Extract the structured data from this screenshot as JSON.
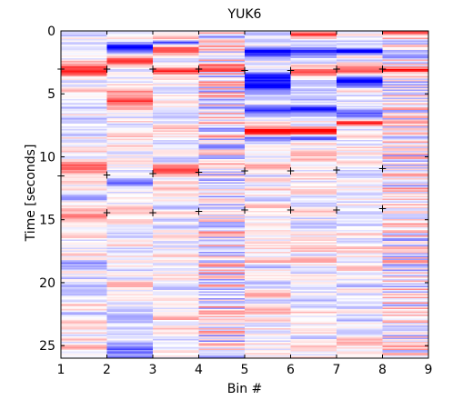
{
  "chart_data": {
    "type": "heatmap",
    "title": "YUK6",
    "xlabel": "Bin #",
    "ylabel": "Time [seconds]",
    "xlim": [
      1,
      9
    ],
    "ylim": [
      0,
      26
    ],
    "y_reversed": true,
    "x_ticks": [
      "1",
      "2",
      "3",
      "4",
      "5",
      "6",
      "7",
      "8",
      "9"
    ],
    "y_ticks": [
      "0",
      "5",
      "10",
      "15",
      "20",
      "25"
    ],
    "y_tick_values": [
      0,
      5,
      10,
      15,
      20,
      25
    ],
    "colormap": {
      "negative": "#0000ff",
      "zero": "#ffffff",
      "positive": "#ff0000"
    },
    "grid": false,
    "legend": "none",
    "markers": {
      "symbol": "+",
      "points": [
        {
          "x": 1,
          "y": 3.0
        },
        {
          "x": 2,
          "y": 3.0
        },
        {
          "x": 3,
          "y": 3.0
        },
        {
          "x": 4,
          "y": 3.0
        },
        {
          "x": 5,
          "y": 3.1
        },
        {
          "x": 6,
          "y": 3.1
        },
        {
          "x": 7,
          "y": 3.0
        },
        {
          "x": 8,
          "y": 3.0
        },
        {
          "x": 1,
          "y": 11.5
        },
        {
          "x": 2,
          "y": 11.4
        },
        {
          "x": 3,
          "y": 11.3
        },
        {
          "x": 4,
          "y": 11.2
        },
        {
          "x": 5,
          "y": 11.1
        },
        {
          "x": 6,
          "y": 11.1
        },
        {
          "x": 7,
          "y": 11.0
        },
        {
          "x": 8,
          "y": 10.9
        },
        {
          "x": 2,
          "y": 14.4
        },
        {
          "x": 3,
          "y": 14.4
        },
        {
          "x": 4,
          "y": 14.3
        },
        {
          "x": 5,
          "y": 14.2
        },
        {
          "x": 6,
          "y": 14.2
        },
        {
          "x": 7,
          "y": 14.2
        },
        {
          "x": 8,
          "y": 14.1
        }
      ]
    },
    "bands": [
      {
        "bin": 1,
        "intensity": 0.55,
        "seed": 11,
        "features": [
          {
            "y": 3.0,
            "w": 0.45,
            "v": 1.0
          },
          {
            "y": 11.0,
            "w": 0.5,
            "v": 0.6
          },
          {
            "y": 14.8,
            "w": 0.4,
            "v": 0.6
          },
          {
            "y": 18.5,
            "w": 0.4,
            "v": -0.4
          }
        ]
      },
      {
        "bin": 2,
        "intensity": 0.5,
        "seed": 23,
        "features": [
          {
            "y": 1.3,
            "w": 0.35,
            "v": -1.0
          },
          {
            "y": 2.3,
            "w": 0.3,
            "v": 0.9
          },
          {
            "y": 5.6,
            "w": 0.9,
            "v": 0.65
          },
          {
            "y": 12.2,
            "w": 0.5,
            "v": -0.4
          },
          {
            "y": 25.5,
            "w": 0.8,
            "v": -0.45
          }
        ]
      },
      {
        "bin": 3,
        "intensity": 0.5,
        "seed": 37,
        "features": [
          {
            "y": 0.6,
            "w": 0.3,
            "v": 0.75
          },
          {
            "y": 0.9,
            "w": 0.2,
            "v": -0.9
          },
          {
            "y": 1.5,
            "w": 0.3,
            "v": 0.85
          },
          {
            "y": 3.2,
            "w": 0.3,
            "v": 0.7
          },
          {
            "y": 11.0,
            "w": 0.4,
            "v": 0.55
          }
        ]
      },
      {
        "bin": 4,
        "intensity": 0.55,
        "seed": 41,
        "stripe": 0.16,
        "features": [
          {
            "y": 3.0,
            "w": 0.3,
            "v": 0.6
          }
        ]
      },
      {
        "bin": 5,
        "intensity": 0.55,
        "seed": 53,
        "features": [
          {
            "y": 1.7,
            "w": 0.35,
            "v": -0.85
          },
          {
            "y": 3.6,
            "w": 0.35,
            "v": -0.85
          },
          {
            "y": 4.3,
            "w": 0.35,
            "v": -0.95
          },
          {
            "y": 6.3,
            "w": 0.4,
            "v": -0.7
          },
          {
            "y": 8.0,
            "w": 0.35,
            "v": 1.0
          },
          {
            "y": 8.5,
            "w": 0.3,
            "v": -0.75
          },
          {
            "y": 10.8,
            "w": 0.35,
            "v": 0.6
          }
        ]
      },
      {
        "bin": 6,
        "intensity": 0.55,
        "seed": 67,
        "features": [
          {
            "y": 0.3,
            "w": 0.3,
            "v": 0.85
          },
          {
            "y": 1.7,
            "w": 0.3,
            "v": -0.9
          },
          {
            "y": 3.2,
            "w": 0.35,
            "v": 0.7
          },
          {
            "y": 6.3,
            "w": 0.35,
            "v": -0.7
          },
          {
            "y": 8.0,
            "w": 0.35,
            "v": 1.0
          },
          {
            "y": 8.5,
            "w": 0.3,
            "v": -0.75
          }
        ]
      },
      {
        "bin": 7,
        "intensity": 0.55,
        "seed": 79,
        "features": [
          {
            "y": 1.6,
            "w": 0.3,
            "v": -0.85
          },
          {
            "y": 3.0,
            "w": 0.35,
            "v": 0.8
          },
          {
            "y": 4.0,
            "w": 0.35,
            "v": -1.0
          },
          {
            "y": 6.7,
            "w": 0.35,
            "v": -0.6
          },
          {
            "y": 7.3,
            "w": 0.3,
            "v": 0.8
          }
        ]
      },
      {
        "bin": 8,
        "intensity": 0.5,
        "seed": 97,
        "stripe": 0.1,
        "features": [
          {
            "y": 0.1,
            "w": 0.3,
            "v": 1.0
          },
          {
            "y": 3.1,
            "w": 0.3,
            "v": 0.7
          }
        ]
      }
    ]
  }
}
